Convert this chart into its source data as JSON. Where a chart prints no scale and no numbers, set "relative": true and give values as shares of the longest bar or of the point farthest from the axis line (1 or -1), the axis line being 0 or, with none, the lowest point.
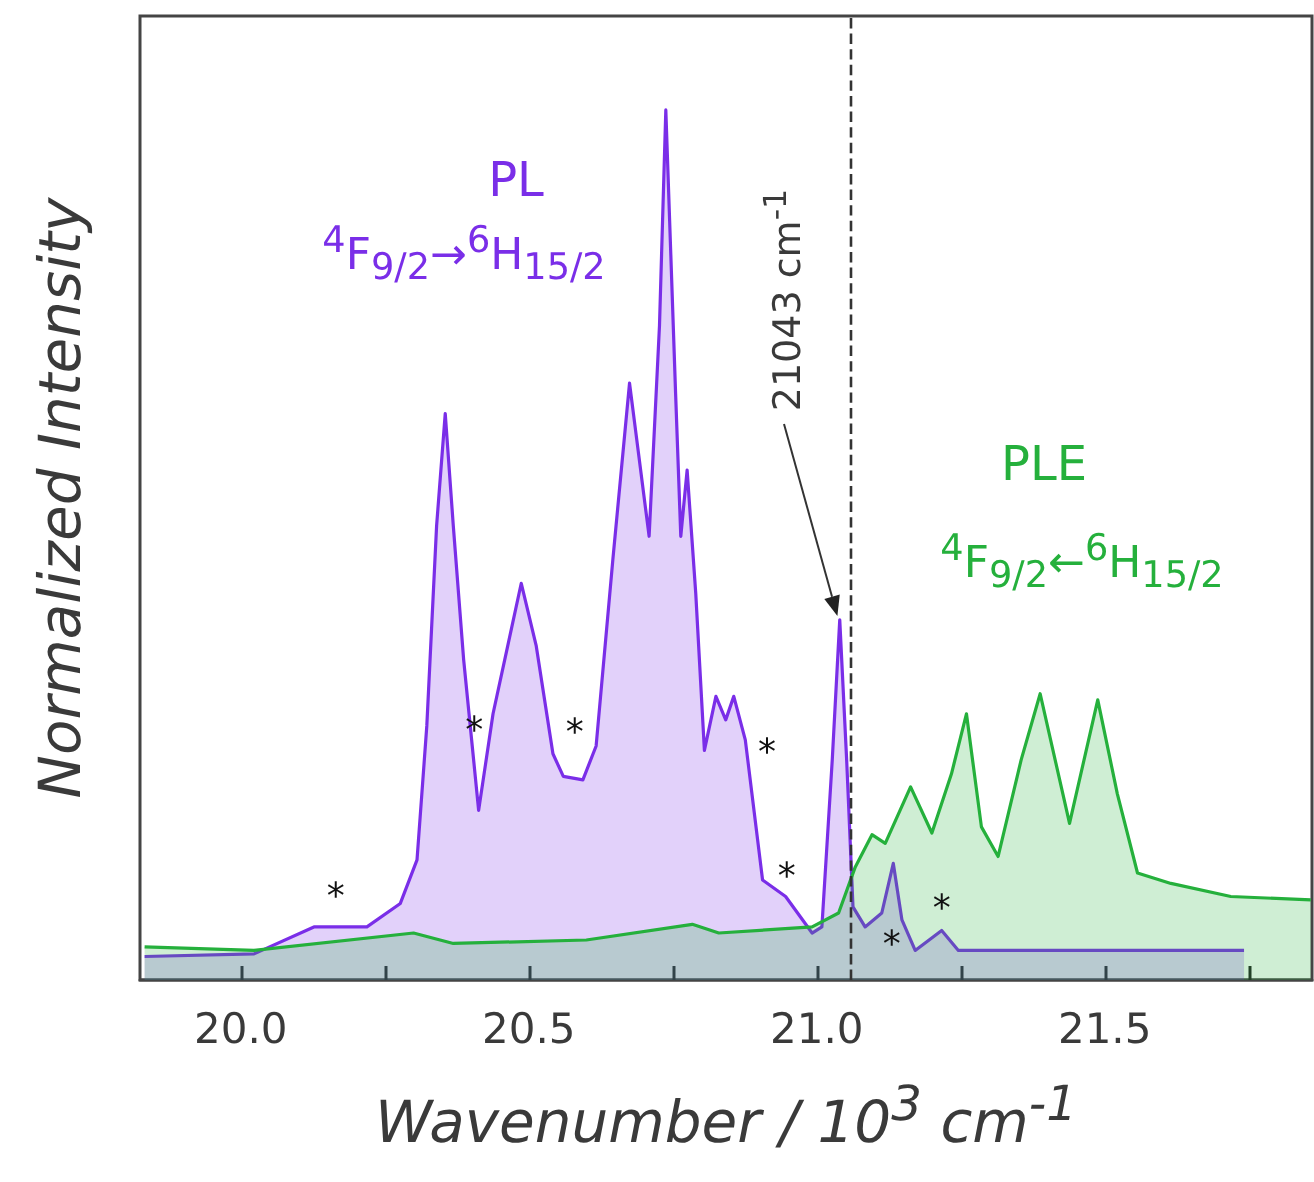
{
  "chart_data": {
    "type": "area",
    "relative": true,
    "xlabel": "Wavenumber / 10$^{3}$ cm$^{-1}$",
    "ylabel": "Normalized Intensity",
    "xlim": [
      19.825,
      21.86
    ],
    "xticks": [
      {
        "value": 20,
        "label": "20.0"
      },
      {
        "value": 20.25,
        "label": null
      },
      {
        "value": 20.5,
        "label": "20.5"
      },
      {
        "value": 20.75,
        "label": null
      },
      {
        "value": 21,
        "label": "21.0"
      },
      {
        "value": 21.25,
        "label": null
      },
      {
        "value": 21.5,
        "label": "21.5"
      },
      {
        "value": 21.75,
        "label": null
      }
    ],
    "tick_labels": "x",
    "grid": false,
    "marker": "none",
    "ref_lines": [
      {
        "axis": "x",
        "value": 21.06,
        "label": null,
        "color": "#333333",
        "line_style": "dashed"
      }
    ],
    "annotations": [
      "PL",
      "$^{4}$F$_{9/2}$→$^{6}$H$_{15/2}$",
      "21043 cm$^{-1}$",
      "PLE",
      "$^{4}$F$_{9/2}$←$^{6}$H$_{15/2}$",
      {
        "text": "*",
        "x": 20.165,
        "y": 0.061
      },
      {
        "text": "*",
        "x": 20.433,
        "y": 0.284
      },
      {
        "text": "*",
        "x": 20.58,
        "y": 0.232
      },
      {
        "text": "*",
        "x": 20.879,
        "y": 0.26
      },
      {
        "text": "*",
        "x": 20.948,
        "y": 0.094
      },
      {
        "text": "*",
        "x": 21.113,
        "y": 0.077
      },
      {
        "text": "*",
        "x": 21.217,
        "y": 0.057
      }
    ],
    "series": [
      {
        "color": "#7a2ee8",
        "x": [
          19.833,
          20.023,
          20.127,
          20.219,
          20.277,
          20.306,
          20.323,
          20.34,
          20.355,
          20.369,
          20.387,
          20.413,
          20.438,
          20.487,
          20.513,
          20.542,
          20.56,
          20.594,
          20.617,
          20.646,
          20.675,
          20.709,
          20.727,
          20.738,
          20.755,
          20.764,
          20.775,
          20.79,
          20.805,
          20.825,
          20.842,
          20.856,
          20.876,
          20.906,
          20.946,
          20.992,
          21.009,
          21.027,
          21.04,
          21.052,
          21.063,
          21.084,
          21.113,
          21.133,
          21.148,
          21.171,
          21.217,
          21.246,
          21.453,
          21.742
        ],
        "values": [
          0.027,
          0.03,
          0.061,
          0.061,
          0.088,
          0.138,
          0.292,
          0.522,
          0.651,
          0.522,
          0.368,
          0.195,
          0.306,
          0.456,
          0.384,
          0.26,
          0.234,
          0.23,
          0.269,
          0.483,
          0.686,
          0.51,
          0.752,
          1.0,
          0.674,
          0.51,
          0.586,
          0.444,
          0.264,
          0.326,
          0.299,
          0.326,
          0.276,
          0.115,
          0.096,
          0.054,
          0.061,
          0.253,
          0.414,
          0.253,
          0.084,
          0.061,
          0.077,
          0.134,
          0.069,
          0.034,
          0.057,
          0.034,
          0.034,
          0.034
        ]
      },
      {
        "color": "#25b03c",
        "x": [
          19.833,
          20.023,
          20.3,
          20.369,
          20.6,
          20.784,
          20.83,
          20.992,
          21.038,
          21.067,
          21.096,
          21.119,
          21.163,
          21.2,
          21.234,
          21.26,
          21.286,
          21.315,
          21.355,
          21.388,
          21.439,
          21.488,
          21.522,
          21.557,
          21.615,
          21.719,
          21.858
        ],
        "values": [
          0.038,
          0.034,
          0.054,
          0.042,
          0.046,
          0.064,
          0.054,
          0.061,
          0.077,
          0.13,
          0.167,
          0.157,
          0.222,
          0.169,
          0.237,
          0.306,
          0.176,
          0.142,
          0.253,
          0.329,
          0.18,
          0.322,
          0.214,
          0.123,
          0.111,
          0.096,
          0.092
        ]
      }
    ]
  }
}
